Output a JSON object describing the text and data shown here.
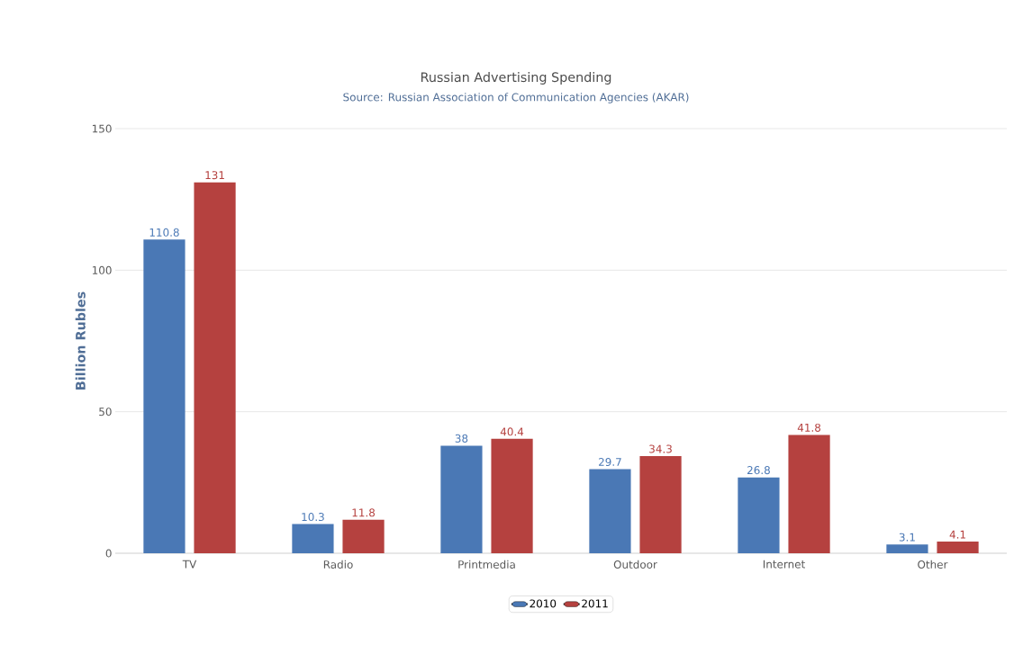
{
  "chart_data": {
    "type": "bar",
    "title": "Russian Advertising Spending",
    "subtitle": "Source:  Russian Association of Communication Agencies (AKAR)",
    "ylabel": "Billion Rubles",
    "categories": [
      "TV",
      "Radio",
      "Printmedia",
      "Outdoor",
      "Internet",
      "Other"
    ],
    "series": [
      {
        "name": "2010",
        "color": "#4a78b5",
        "values": [
          110.8,
          10.3,
          38,
          29.7,
          26.8,
          3.1
        ]
      },
      {
        "name": "2011",
        "color": "#b5413f",
        "values": [
          131,
          11.8,
          40.4,
          34.3,
          41.8,
          4.1
        ]
      }
    ],
    "ylim": [
      0,
      150
    ],
    "yticks": [
      0,
      50,
      100,
      150
    ],
    "grid": "y",
    "legend": "bottom",
    "data_labels": true
  }
}
